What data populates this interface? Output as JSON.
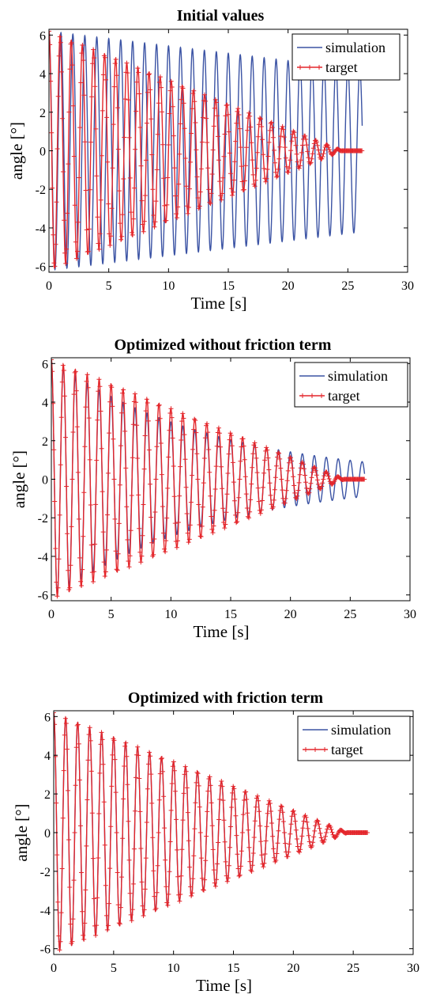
{
  "colors": {
    "simulation": "#3b53a4",
    "target": "#e4262b",
    "axis": "#000000",
    "background": "#ffffff"
  },
  "chart_data": [
    {
      "type": "line",
      "title": "Initial values",
      "xlabel": "Time [s]",
      "ylabel": "angle [°]",
      "xlim": [
        0,
        30
      ],
      "ylim": [
        -6.3,
        6.3
      ],
      "xticks": [
        0,
        5,
        10,
        15,
        20,
        25,
        30
      ],
      "yticks": [
        -6,
        -4,
        -2,
        0,
        2,
        4,
        6
      ],
      "legend": {
        "position": "top-right",
        "entries": [
          "simulation",
          "target"
        ]
      },
      "series": [
        {
          "name": "simulation",
          "marker": "none",
          "amplitude_start": 6.2,
          "amplitude_end": 4.2,
          "decay": "linear",
          "period": 1.0,
          "t_start": 0,
          "t_end": 26.2
        },
        {
          "name": "target",
          "marker": "+",
          "amplitude_start": 6.2,
          "amplitude_end": 0.0,
          "decay_end_time": 24.5,
          "decay": "linear",
          "period": 0.93,
          "t_start": 0,
          "t_end": 26.2
        }
      ]
    },
    {
      "type": "line",
      "title": "Optimized without friction term",
      "xlabel": "Time [s]",
      "ylabel": "angle [°]",
      "xlim": [
        0,
        30
      ],
      "ylim": [
        -6.3,
        6.3
      ],
      "xticks": [
        0,
        5,
        10,
        15,
        20,
        25,
        30
      ],
      "yticks": [
        -6,
        -4,
        -2,
        0,
        2,
        4,
        6
      ],
      "legend": {
        "position": "top-right",
        "entries": [
          "simulation",
          "target"
        ]
      },
      "series": [
        {
          "name": "simulation",
          "marker": "none",
          "amplitude_start": 6.2,
          "amplitude_end": 0.9,
          "decay": "exponential",
          "period": 1.0,
          "t_start": 0,
          "t_end": 26.2
        },
        {
          "name": "target",
          "marker": "+",
          "amplitude_start": 6.2,
          "amplitude_end": 0.0,
          "decay_end_time": 24.5,
          "decay": "linear",
          "period": 1.0,
          "t_start": 0,
          "t_end": 26.2
        }
      ]
    },
    {
      "type": "line",
      "title": "Optimized with friction term",
      "xlabel": "Time [s]",
      "ylabel": "angle [°]",
      "xlim": [
        0,
        30
      ],
      "ylim": [
        -6.3,
        6.3
      ],
      "xticks": [
        0,
        5,
        10,
        15,
        20,
        25,
        30
      ],
      "yticks": [
        -6,
        -4,
        -2,
        0,
        2,
        4,
        6
      ],
      "legend": {
        "position": "top-right",
        "entries": [
          "simulation",
          "target"
        ]
      },
      "series": [
        {
          "name": "simulation",
          "marker": "none",
          "amplitude_start": 6.2,
          "amplitude_end": 0.0,
          "decay_end_time": 24.5,
          "decay": "linear",
          "period": 1.0,
          "t_start": 0,
          "t_end": 26.2
        },
        {
          "name": "target",
          "marker": "+",
          "amplitude_start": 6.2,
          "amplitude_end": 0.0,
          "decay_end_time": 24.5,
          "decay": "linear",
          "period": 1.0,
          "t_start": 0,
          "t_end": 26.2
        }
      ]
    }
  ]
}
